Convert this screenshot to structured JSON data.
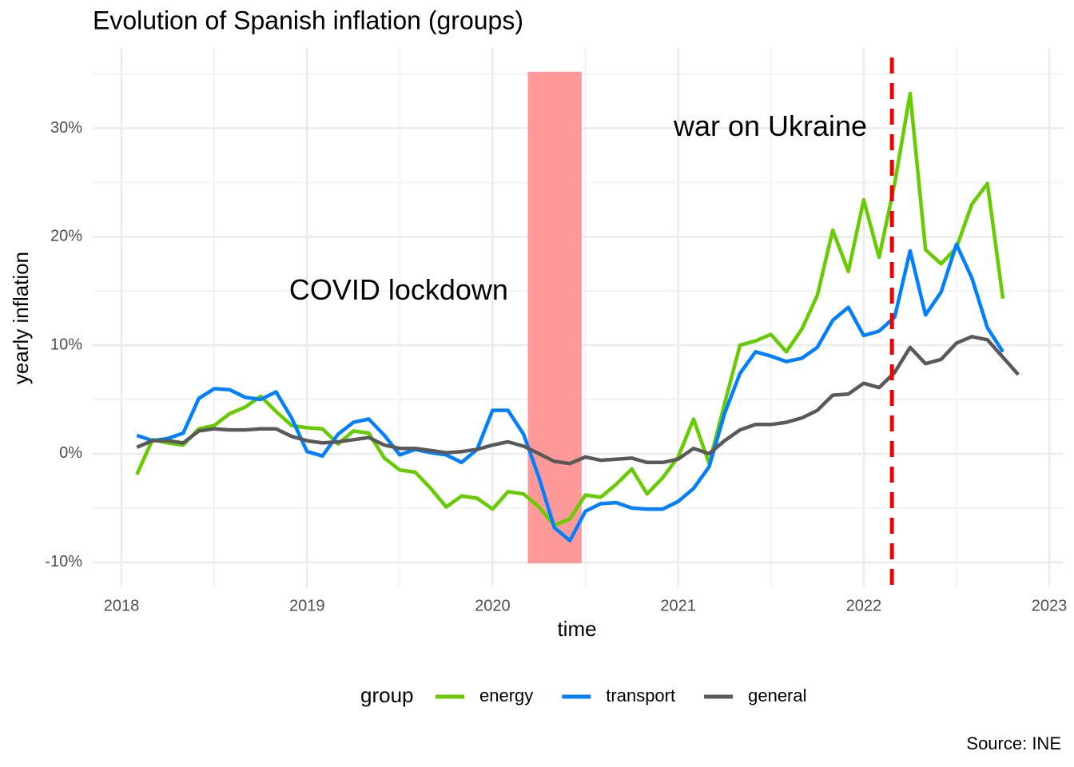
{
  "chart_data": {
    "type": "line",
    "title": "Evolution of Spanish inflation (groups)",
    "x_label": "time",
    "y_label": "yearly inflation",
    "caption": "Source: INE",
    "legend_title": "group",
    "legend_position": "bottom",
    "x": [
      2018.083,
      2018.167,
      2018.25,
      2018.333,
      2018.417,
      2018.5,
      2018.583,
      2018.667,
      2018.75,
      2018.833,
      2018.917,
      2019,
      2019.083,
      2019.167,
      2019.25,
      2019.333,
      2019.417,
      2019.5,
      2019.583,
      2019.667,
      2019.75,
      2019.833,
      2019.917,
      2020,
      2020.083,
      2020.167,
      2020.25,
      2020.333,
      2020.417,
      2020.5,
      2020.583,
      2020.667,
      2020.75,
      2020.833,
      2020.917,
      2021,
      2021.083,
      2021.167,
      2021.25,
      2021.333,
      2021.417,
      2021.5,
      2021.583,
      2021.667,
      2021.75,
      2021.833,
      2021.917,
      2022,
      2022.083,
      2022.167,
      2022.25,
      2022.333,
      2022.417,
      2022.5,
      2022.583,
      2022.667,
      2022.75,
      2022.833
    ],
    "series": [
      {
        "name": "energy",
        "color": "#66cc00",
        "values": [
          -1.9,
          1.3,
          1.0,
          0.8,
          2.3,
          2.6,
          3.7,
          4.3,
          5.3,
          3.9,
          2.6,
          2.4,
          2.3,
          0.9,
          2.1,
          1.9,
          -0.4,
          -1.5,
          -1.7,
          -3.2,
          -4.9,
          -3.9,
          -4.1,
          -5.1,
          -3.5,
          -3.7,
          -4.9,
          -6.6,
          -6.0,
          -3.8,
          -4.0,
          -2.8,
          -1.4,
          -3.7,
          -2.2,
          -0.3,
          3.2,
          -0.9,
          4.6,
          10.0,
          10.4,
          11.0,
          9.4,
          11.5,
          14.6,
          20.6,
          16.8,
          23.4,
          18.1,
          24.9,
          33.2,
          18.8,
          17.5,
          19.0,
          23.0,
          24.9,
          14.3,
          null
        ]
      },
      {
        "name": "transport",
        "color": "#0080ff",
        "values": [
          1.7,
          1.2,
          1.4,
          1.9,
          5.1,
          6.0,
          5.9,
          5.2,
          5.0,
          5.7,
          3.3,
          0.2,
          -0.2,
          1.8,
          2.9,
          3.2,
          1.7,
          -0.1,
          0.4,
          0.1,
          -0.1,
          -0.8,
          0.4,
          4.0,
          4.0,
          1.8,
          -2.2,
          -6.8,
          -8.0,
          -5.3,
          -4.6,
          -4.5,
          -5.0,
          -5.1,
          -5.1,
          -4.4,
          -3.2,
          -1.2,
          3.7,
          7.4,
          9.4,
          9.0,
          8.5,
          8.8,
          9.8,
          12.3,
          13.5,
          10.9,
          11.3,
          12.6,
          18.7,
          12.8,
          14.9,
          19.3,
          16.2,
          11.6,
          9.4,
          null
        ]
      },
      {
        "name": "general",
        "color": "#595959",
        "values": [
          0.6,
          1.2,
          1.2,
          1.0,
          2.1,
          2.3,
          2.2,
          2.2,
          2.3,
          2.3,
          1.6,
          1.2,
          1.0,
          1.1,
          1.3,
          1.5,
          0.8,
          0.5,
          0.5,
          0.3,
          0.1,
          0.2,
          0.4,
          0.8,
          1.1,
          0.7,
          0.0,
          -0.7,
          -0.9,
          -0.3,
          -0.6,
          -0.5,
          -0.4,
          -0.8,
          -0.8,
          -0.5,
          0.5,
          0.0,
          1.2,
          2.2,
          2.7,
          2.7,
          2.9,
          3.3,
          4.0,
          5.4,
          5.5,
          6.5,
          6.1,
          7.5,
          9.8,
          8.3,
          8.7,
          10.2,
          10.8,
          10.5,
          8.9,
          7.3
        ]
      }
    ],
    "xlim": [
      2017.845,
      2023.073
    ],
    "ylim": [
      -12.3,
      37.4
    ],
    "xticks": [
      2018,
      2019,
      2020,
      2021,
      2022,
      2023
    ],
    "yticks": [
      {
        "value": -10,
        "label": "-10%"
      },
      {
        "value": 0,
        "label": "0%"
      },
      {
        "value": 10,
        "label": "10%"
      },
      {
        "value": 20,
        "label": "20%"
      },
      {
        "value": 30,
        "label": "30%"
      }
    ],
    "minor_xticks": [
      2018.5,
      2019.5,
      2020.5,
      2021.5,
      2022.5
    ],
    "minor_yticks": [
      -5,
      5,
      15,
      25,
      35
    ],
    "grid": true,
    "shaded_region": {
      "xlim": [
        2020.19,
        2020.48
      ],
      "ylim": [
        -10.1,
        35.2
      ],
      "color": "#ff9999"
    },
    "vline": {
      "x": 2022.152,
      "color": "#ee0000"
    },
    "annotations": [
      {
        "text": "COVID lockdown",
        "x": 2019.494,
        "y": 14.9
      },
      {
        "text": "war on Ukraine",
        "x": 2021.497,
        "y": 30.0
      }
    ]
  }
}
